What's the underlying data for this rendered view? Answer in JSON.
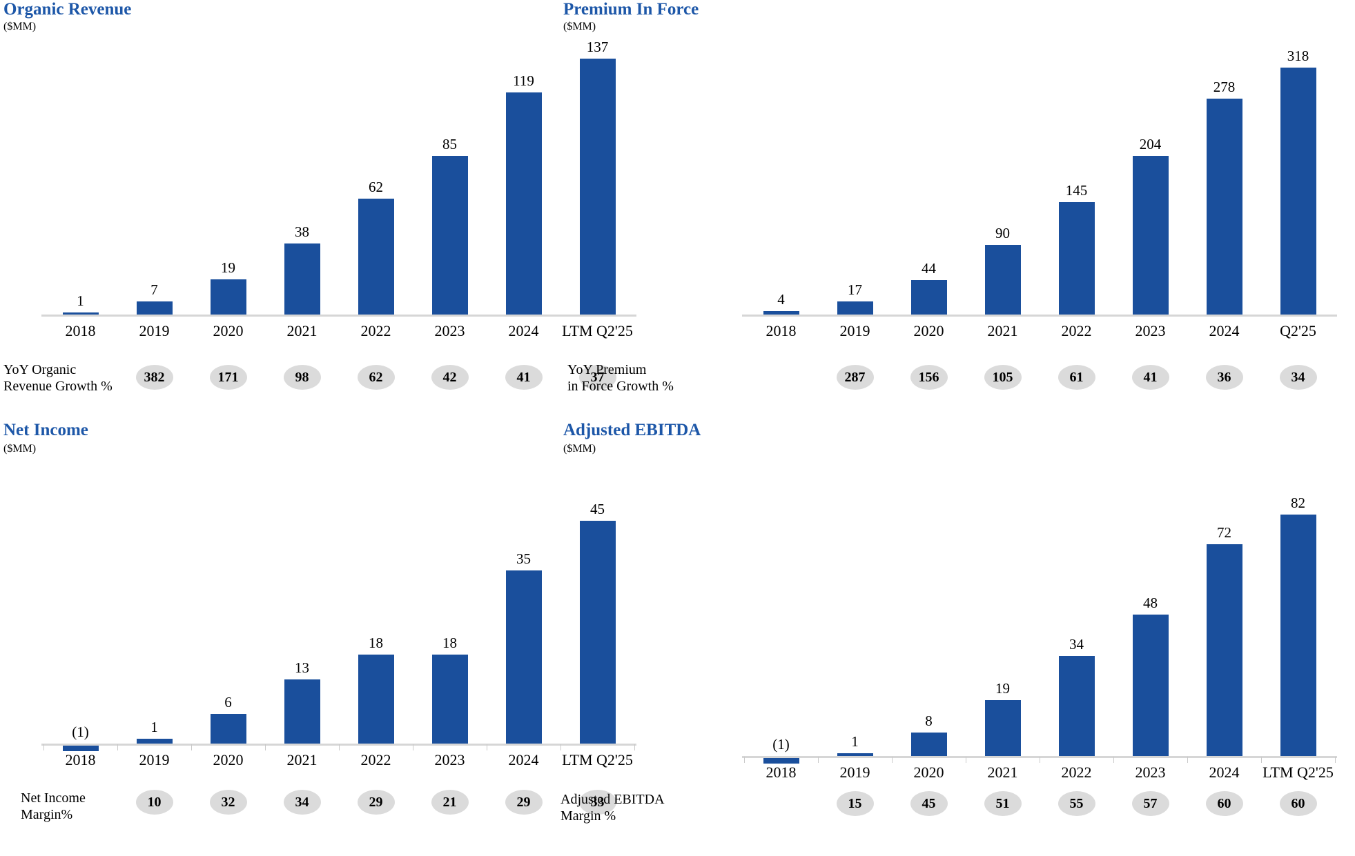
{
  "colors": {
    "bar": "#1A4F9C",
    "title": "#1D57A8",
    "badge_bg": "#DBDBDB",
    "axis": "#D6D6D6"
  },
  "chart_data": [
    {
      "type": "bar",
      "title": "Organic Revenue",
      "unit": "($MM)",
      "categories": [
        "2018",
        "2019",
        "2020",
        "2021",
        "2022",
        "2023",
        "2024",
        "LTM Q2'25"
      ],
      "values": [
        1,
        7,
        19,
        38,
        62,
        85,
        119,
        137
      ],
      "value_labels": [
        "1",
        "7",
        "19",
        "38",
        "62",
        "85",
        "119",
        "137"
      ],
      "ylim": [
        0,
        137
      ],
      "grid": false,
      "badge_row_label": [
        "YoY Organic",
        "Revenue Growth %"
      ],
      "badges": [
        "382",
        "171",
        "98",
        "62",
        "42",
        "41",
        "37"
      ]
    },
    {
      "type": "bar",
      "title": "Premium In Force",
      "unit": "($MM)",
      "categories": [
        "2018",
        "2019",
        "2020",
        "2021",
        "2022",
        "2023",
        "2024",
        "Q2'25"
      ],
      "values": [
        4,
        17,
        44,
        90,
        145,
        204,
        278,
        318
      ],
      "value_labels": [
        "4",
        "17",
        "44",
        "90",
        "145",
        "204",
        "278",
        "318"
      ],
      "ylim": [
        0,
        318
      ],
      "grid": false,
      "badge_row_label": [
        "YoY Premium",
        "in Force Growth %"
      ],
      "badges": [
        "287",
        "156",
        "105",
        "61",
        "41",
        "36",
        "34"
      ]
    },
    {
      "type": "bar",
      "title": "Net Income",
      "unit": "($MM)",
      "categories": [
        "2018",
        "2019",
        "2020",
        "2021",
        "2022",
        "2023",
        "2024",
        "LTM Q2'25"
      ],
      "values": [
        -1,
        1,
        6,
        13,
        18,
        18,
        35,
        45
      ],
      "value_labels": [
        "(1)",
        "1",
        "6",
        "13",
        "18",
        "18",
        "35",
        "45"
      ],
      "ylim": [
        -1,
        45
      ],
      "grid": false,
      "badge_row_label": [
        "Net Income",
        "Margin%"
      ],
      "badges": [
        "10",
        "32",
        "34",
        "29",
        "21",
        "29",
        "33"
      ]
    },
    {
      "type": "bar",
      "title": "Adjusted EBITDA",
      "unit": "($MM)",
      "categories": [
        "2018",
        "2019",
        "2020",
        "2021",
        "2022",
        "2023",
        "2024",
        "LTM Q2'25"
      ],
      "values": [
        -1,
        1,
        8,
        19,
        34,
        48,
        72,
        82
      ],
      "value_labels": [
        "(1)",
        "1",
        "8",
        "19",
        "34",
        "48",
        "72",
        "82"
      ],
      "ylim": [
        -1,
        82
      ],
      "grid": false,
      "badge_row_label": [
        "Adjusted EBITDA",
        "Margin %"
      ],
      "badges": [
        "15",
        "45",
        "51",
        "55",
        "57",
        "60",
        "60"
      ]
    }
  ]
}
